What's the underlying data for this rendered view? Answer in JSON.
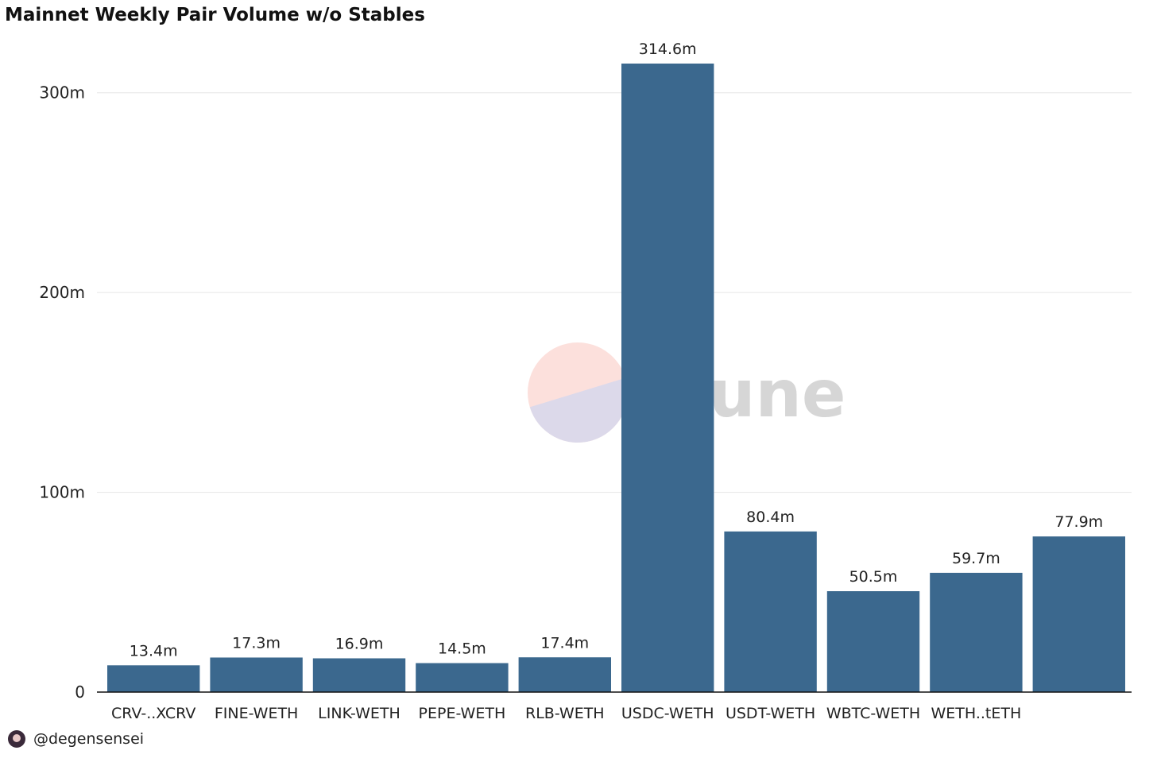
{
  "chart_data": {
    "type": "bar",
    "title": "Mainnet Weekly Pair Volume w/o Stables",
    "xlabel": "",
    "ylabel": "",
    "categories": [
      "CRV-..XCRV",
      "FINE-WETH",
      "LINK-WETH",
      "PEPE-WETH",
      "RLB-WETH",
      "USDC-WETH",
      "USDT-WETH",
      "WBTC-WETH",
      "WETH..tETH",
      ""
    ],
    "values": [
      13.4,
      17.3,
      16.9,
      14.5,
      17.4,
      314.6,
      80.4,
      50.5,
      59.7,
      77.9
    ],
    "data_labels": [
      "13.4m",
      "17.3m",
      "16.9m",
      "14.5m",
      "17.4m",
      "314.6m",
      "80.4m",
      "50.5m",
      "59.7m",
      "77.9m"
    ],
    "yticks": [
      0,
      100,
      200,
      300
    ],
    "ytick_labels": [
      "0",
      "100m",
      "200m",
      "300m"
    ],
    "ylim": [
      0,
      314.6
    ],
    "grid": true,
    "bar_color": "#3b688e"
  },
  "watermark": {
    "text": "Dune"
  },
  "footer": {
    "handle": "@degensensei"
  }
}
